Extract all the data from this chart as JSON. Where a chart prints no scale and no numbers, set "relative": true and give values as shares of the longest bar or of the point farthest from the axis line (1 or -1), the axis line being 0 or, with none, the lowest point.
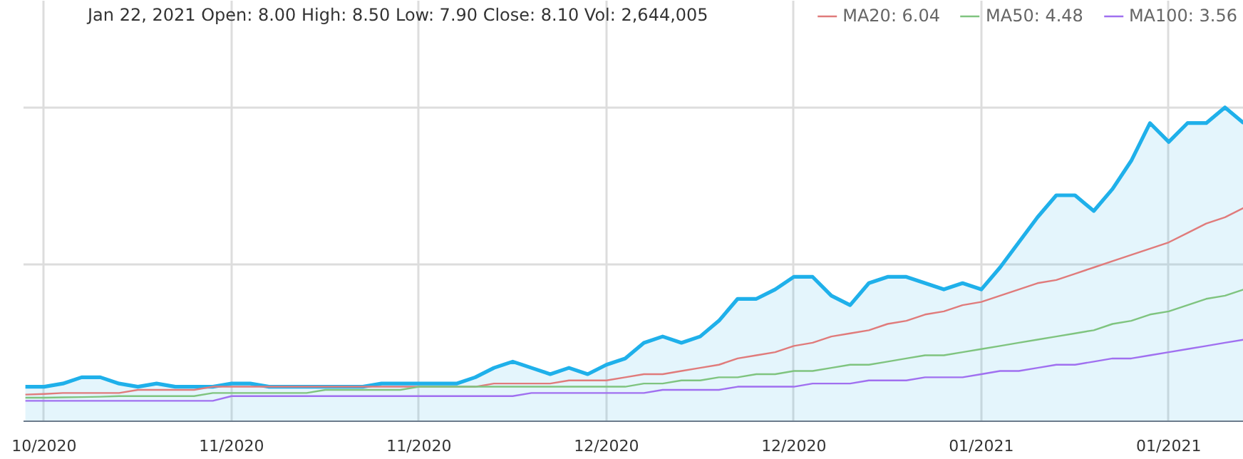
{
  "chart_data": {
    "type": "area",
    "relative": true,
    "annotations": [
      "Jan 22, 2021  Open: 8.00  High: 8.50  Low: 7.90  Close: 8.10  Vol: 2,644,005"
    ],
    "categories": [
      null,
      "10/2020",
      null,
      null,
      null,
      null,
      null,
      null,
      null,
      null,
      null,
      "11/2020",
      null,
      null,
      null,
      null,
      null,
      null,
      null,
      null,
      null,
      "11/2020",
      null,
      null,
      null,
      null,
      null,
      null,
      null,
      null,
      null,
      "12/2020",
      null,
      null,
      null,
      null,
      null,
      null,
      null,
      null,
      null,
      "12/2020",
      null,
      null,
      null,
      null,
      null,
      null,
      null,
      null,
      null,
      "01/2021",
      null,
      null,
      null,
      null,
      null,
      null,
      null,
      null,
      null,
      "01/2021",
      null,
      null,
      null,
      null
    ],
    "grid": true,
    "legend": "top right",
    "tick_labels": "x",
    "series": [
      {
        "color": "#1fb0ea",
        "values": [
          0.11,
          0.11,
          0.12,
          0.14,
          0.14,
          0.12,
          0.11,
          0.12,
          0.11,
          0.11,
          0.11,
          0.12,
          0.12,
          0.11,
          0.11,
          0.11,
          0.11,
          0.11,
          0.11,
          0.12,
          0.12,
          0.12,
          0.12,
          0.12,
          0.14,
          0.17,
          0.19,
          0.17,
          0.15,
          0.17,
          0.15,
          0.18,
          0.2,
          0.25,
          0.27,
          0.25,
          0.27,
          0.32,
          0.39,
          0.39,
          0.42,
          0.46,
          0.46,
          0.4,
          0.37,
          0.44,
          0.46,
          0.46,
          0.44,
          0.42,
          0.44,
          0.42,
          0.49,
          0.57,
          0.65,
          0.72,
          0.72,
          0.67,
          0.74,
          0.83,
          0.95,
          0.89,
          0.95,
          0.95,
          1.0,
          0.95
        ]
      },
      {
        "type": "line",
        "name": "MA20: 6.04",
        "color": "#e07b7b",
        "values": [
          0.085,
          0.087,
          0.09,
          0.09,
          0.09,
          0.09,
          0.1,
          0.1,
          0.1,
          0.1,
          0.11,
          0.11,
          0.11,
          0.11,
          0.11,
          0.11,
          0.11,
          0.11,
          0.11,
          0.11,
          0.11,
          0.11,
          0.11,
          0.11,
          0.11,
          0.12,
          0.12,
          0.12,
          0.12,
          0.13,
          0.13,
          0.13,
          0.14,
          0.15,
          0.15,
          0.16,
          0.17,
          0.18,
          0.2,
          0.21,
          0.22,
          0.24,
          0.25,
          0.27,
          0.28,
          0.29,
          0.31,
          0.32,
          0.34,
          0.35,
          0.37,
          0.38,
          0.4,
          0.42,
          0.44,
          0.45,
          0.47,
          0.49,
          0.51,
          0.53,
          0.55,
          0.57,
          0.6,
          0.63,
          0.65,
          0.68
        ]
      },
      {
        "type": "line",
        "name": "MA50: 4.48",
        "color": "#7fc47f",
        "values": [
          0.075,
          0.075,
          0.076,
          0.077,
          0.078,
          0.08,
          0.08,
          0.08,
          0.08,
          0.08,
          0.09,
          0.09,
          0.09,
          0.09,
          0.09,
          0.09,
          0.1,
          0.1,
          0.1,
          0.1,
          0.1,
          0.11,
          0.11,
          0.11,
          0.11,
          0.11,
          0.11,
          0.11,
          0.11,
          0.11,
          0.11,
          0.11,
          0.11,
          0.12,
          0.12,
          0.13,
          0.13,
          0.14,
          0.14,
          0.15,
          0.15,
          0.16,
          0.16,
          0.17,
          0.18,
          0.18,
          0.19,
          0.2,
          0.21,
          0.21,
          0.22,
          0.23,
          0.24,
          0.25,
          0.26,
          0.27,
          0.28,
          0.29,
          0.31,
          0.32,
          0.34,
          0.35,
          0.37,
          0.39,
          0.4,
          0.42
        ]
      },
      {
        "type": "line",
        "name": "MA100: 3.56",
        "color": "#a070f0",
        "values": [
          0.065,
          0.065,
          0.065,
          0.065,
          0.065,
          0.065,
          0.065,
          0.065,
          0.065,
          0.065,
          0.065,
          0.08,
          0.08,
          0.08,
          0.08,
          0.08,
          0.08,
          0.08,
          0.08,
          0.08,
          0.08,
          0.08,
          0.08,
          0.08,
          0.08,
          0.08,
          0.08,
          0.09,
          0.09,
          0.09,
          0.09,
          0.09,
          0.09,
          0.09,
          0.1,
          0.1,
          0.1,
          0.1,
          0.11,
          0.11,
          0.11,
          0.11,
          0.12,
          0.12,
          0.12,
          0.13,
          0.13,
          0.13,
          0.14,
          0.14,
          0.14,
          0.15,
          0.16,
          0.16,
          0.17,
          0.18,
          0.18,
          0.19,
          0.2,
          0.2,
          0.21,
          0.22,
          0.23,
          0.24,
          0.25,
          0.26
        ]
      }
    ]
  }
}
